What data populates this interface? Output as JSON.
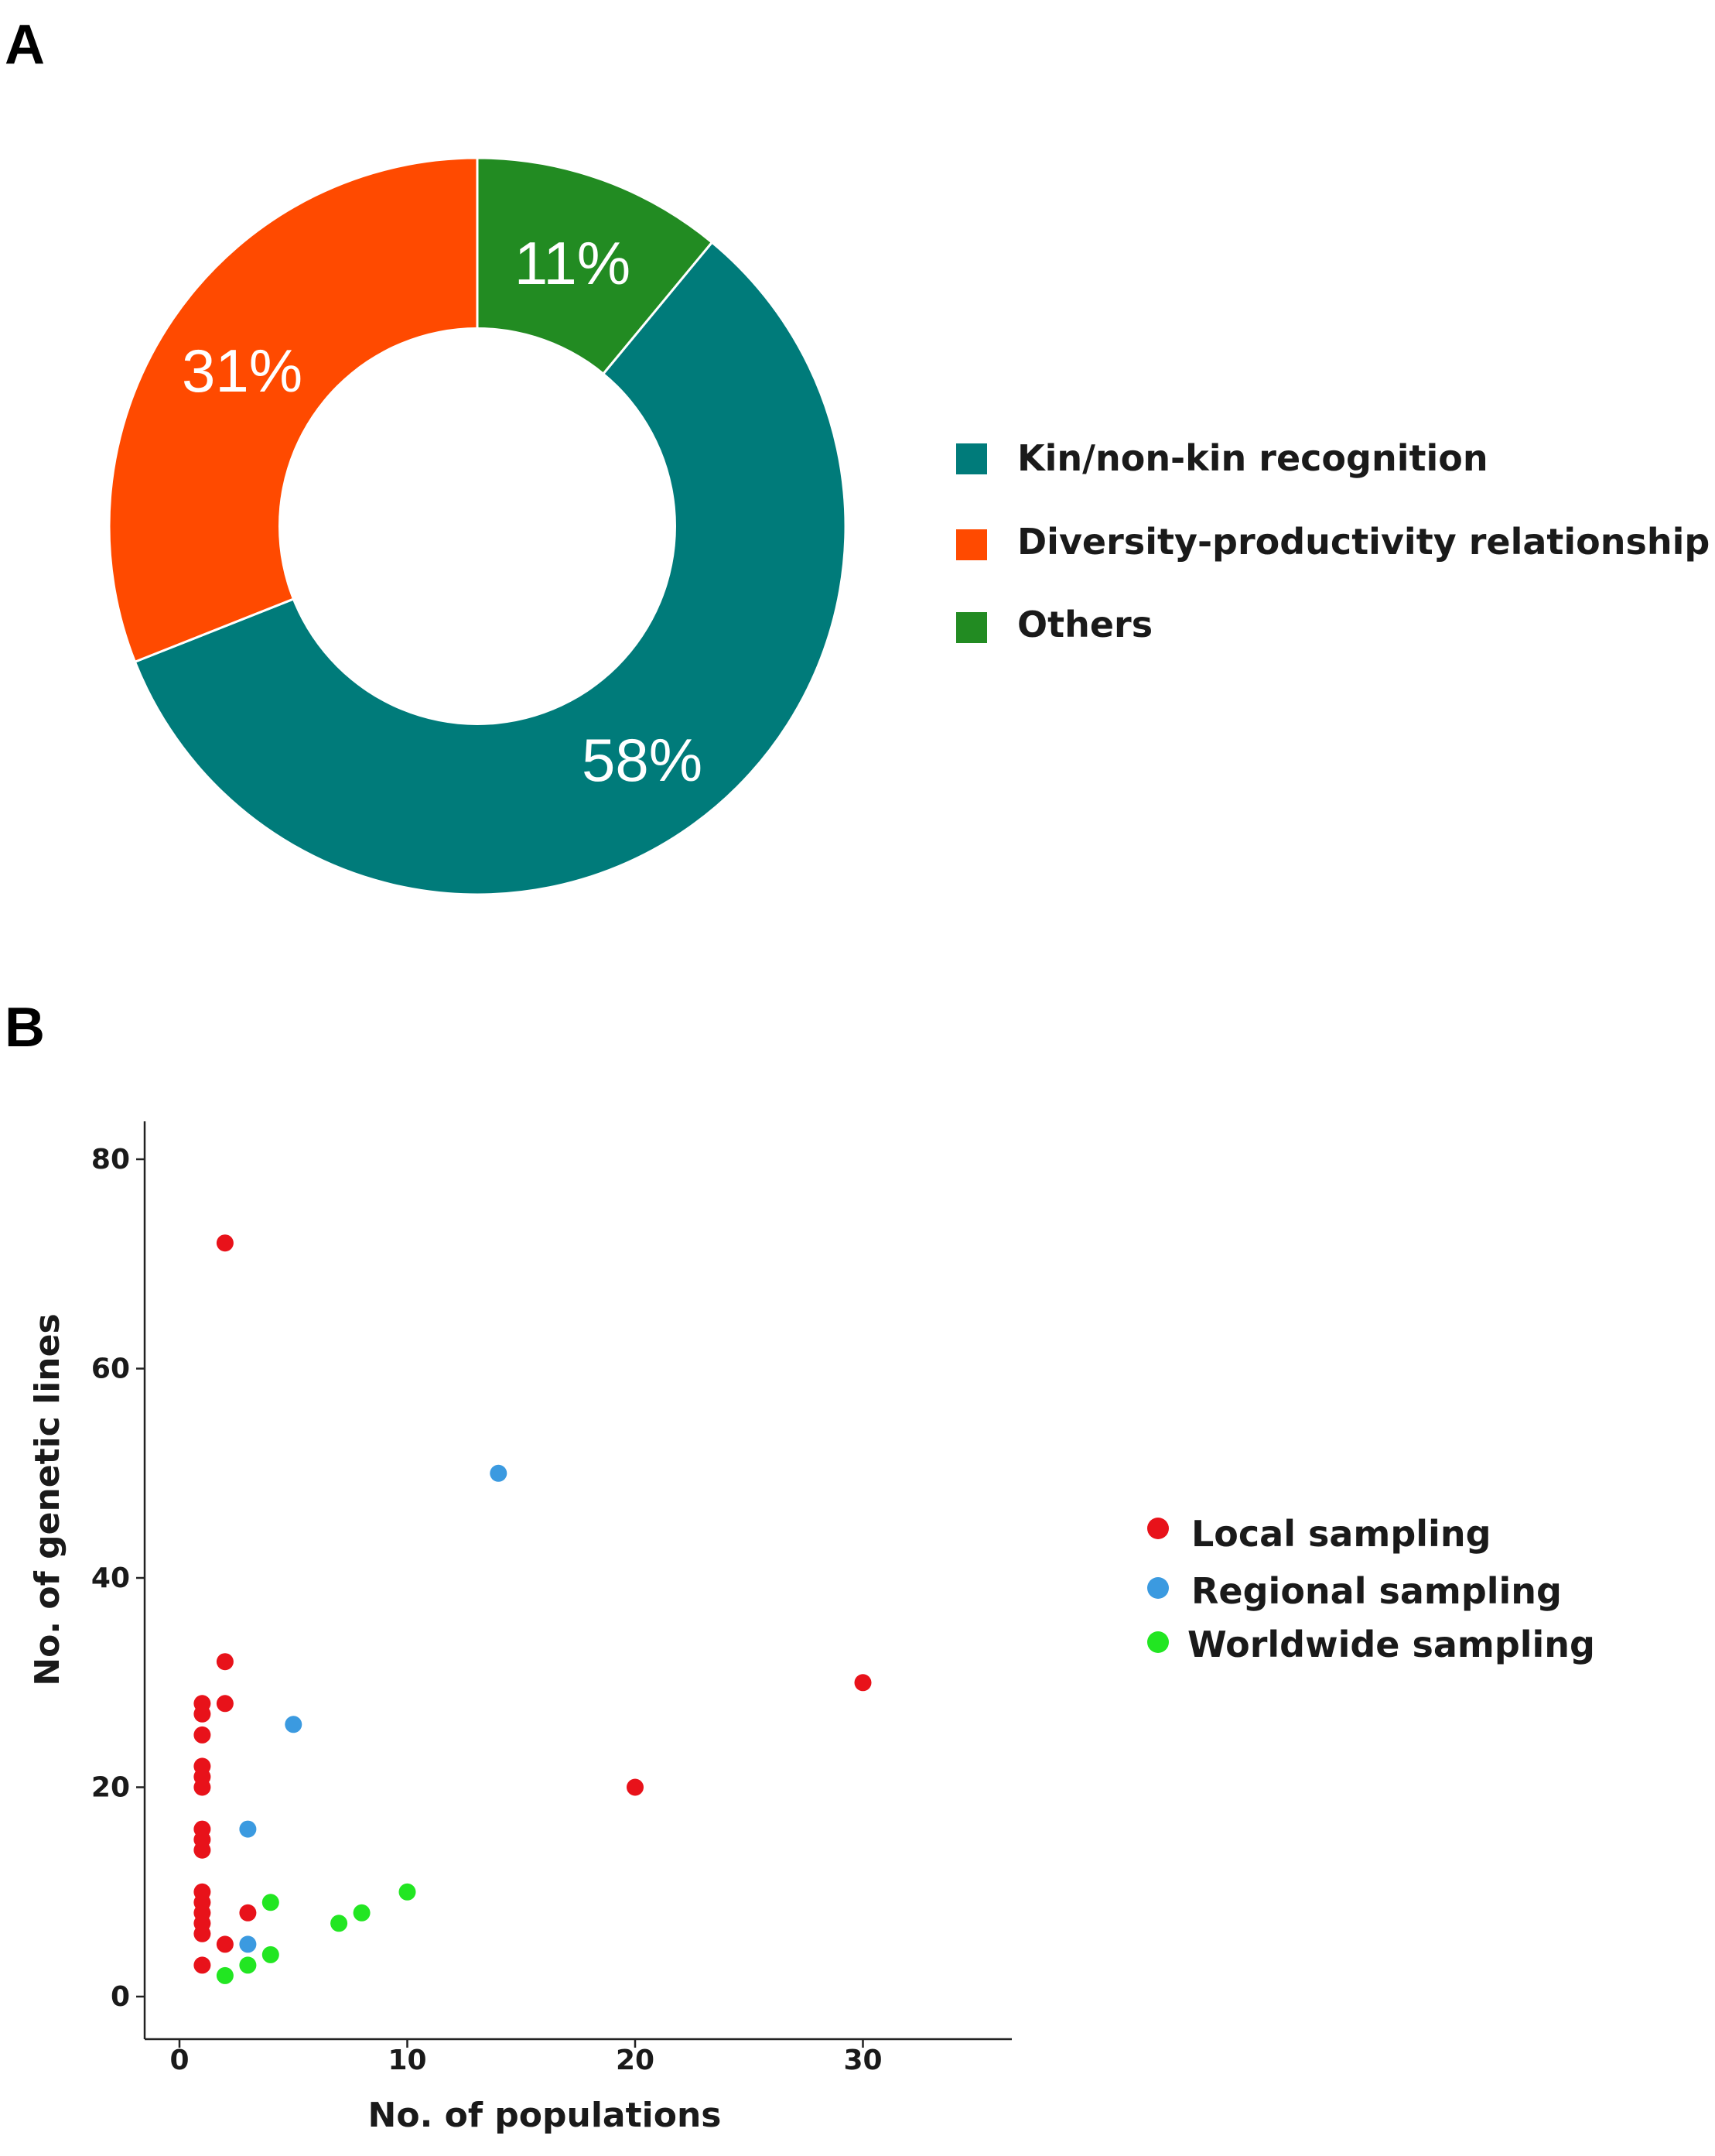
{
  "panels": {
    "a_letter": "A",
    "b_letter": "B"
  },
  "chart_data": [
    {
      "type": "pie",
      "variant": "donut",
      "slices": [
        {
          "label": "Kin/non-kin recognition",
          "value": 58,
          "display": "58%",
          "color": "#007B7A"
        },
        {
          "label": "Diversity-productivity relationship",
          "value": 31,
          "display": "31%",
          "color": "#FF4A00"
        },
        {
          "label": "Others",
          "value": 11,
          "display": "11%",
          "color": "#228B22"
        }
      ],
      "legend_position": "right"
    },
    {
      "type": "scatter",
      "xlabel": "No. of populations",
      "ylabel": "No. of genetic lines",
      "xlim": [
        -1.5,
        36
      ],
      "ylim": [
        -2,
        84
      ],
      "xticks": [
        0,
        10,
        20,
        30
      ],
      "yticks": [
        0,
        20,
        40,
        60,
        80
      ],
      "legend_position": "right",
      "series": [
        {
          "name": "Local sampling",
          "color": "#E8121A",
          "points": [
            [
              1,
              3
            ],
            [
              1,
              6
            ],
            [
              1,
              7
            ],
            [
              1,
              8
            ],
            [
              1,
              9
            ],
            [
              1,
              10
            ],
            [
              1,
              14
            ],
            [
              1,
              15
            ],
            [
              1,
              16
            ],
            [
              1,
              20
            ],
            [
              1,
              21
            ],
            [
              1,
              22
            ],
            [
              1,
              25
            ],
            [
              1,
              27
            ],
            [
              1,
              28
            ],
            [
              2,
              5
            ],
            [
              2,
              28
            ],
            [
              2,
              32
            ],
            [
              2,
              72
            ],
            [
              3,
              8
            ],
            [
              20,
              20
            ],
            [
              30,
              30
            ]
          ]
        },
        {
          "name": "Regional sampling",
          "color": "#3B9AE0",
          "points": [
            [
              3,
              5
            ],
            [
              3,
              16
            ],
            [
              5,
              26
            ],
            [
              14,
              50
            ]
          ]
        },
        {
          "name": "Worldwide sampling",
          "color": "#22E622",
          "points": [
            [
              2,
              2
            ],
            [
              3,
              3
            ],
            [
              4,
              4
            ],
            [
              4,
              9
            ],
            [
              7,
              7
            ],
            [
              8,
              8
            ],
            [
              10,
              10
            ]
          ]
        }
      ]
    }
  ]
}
